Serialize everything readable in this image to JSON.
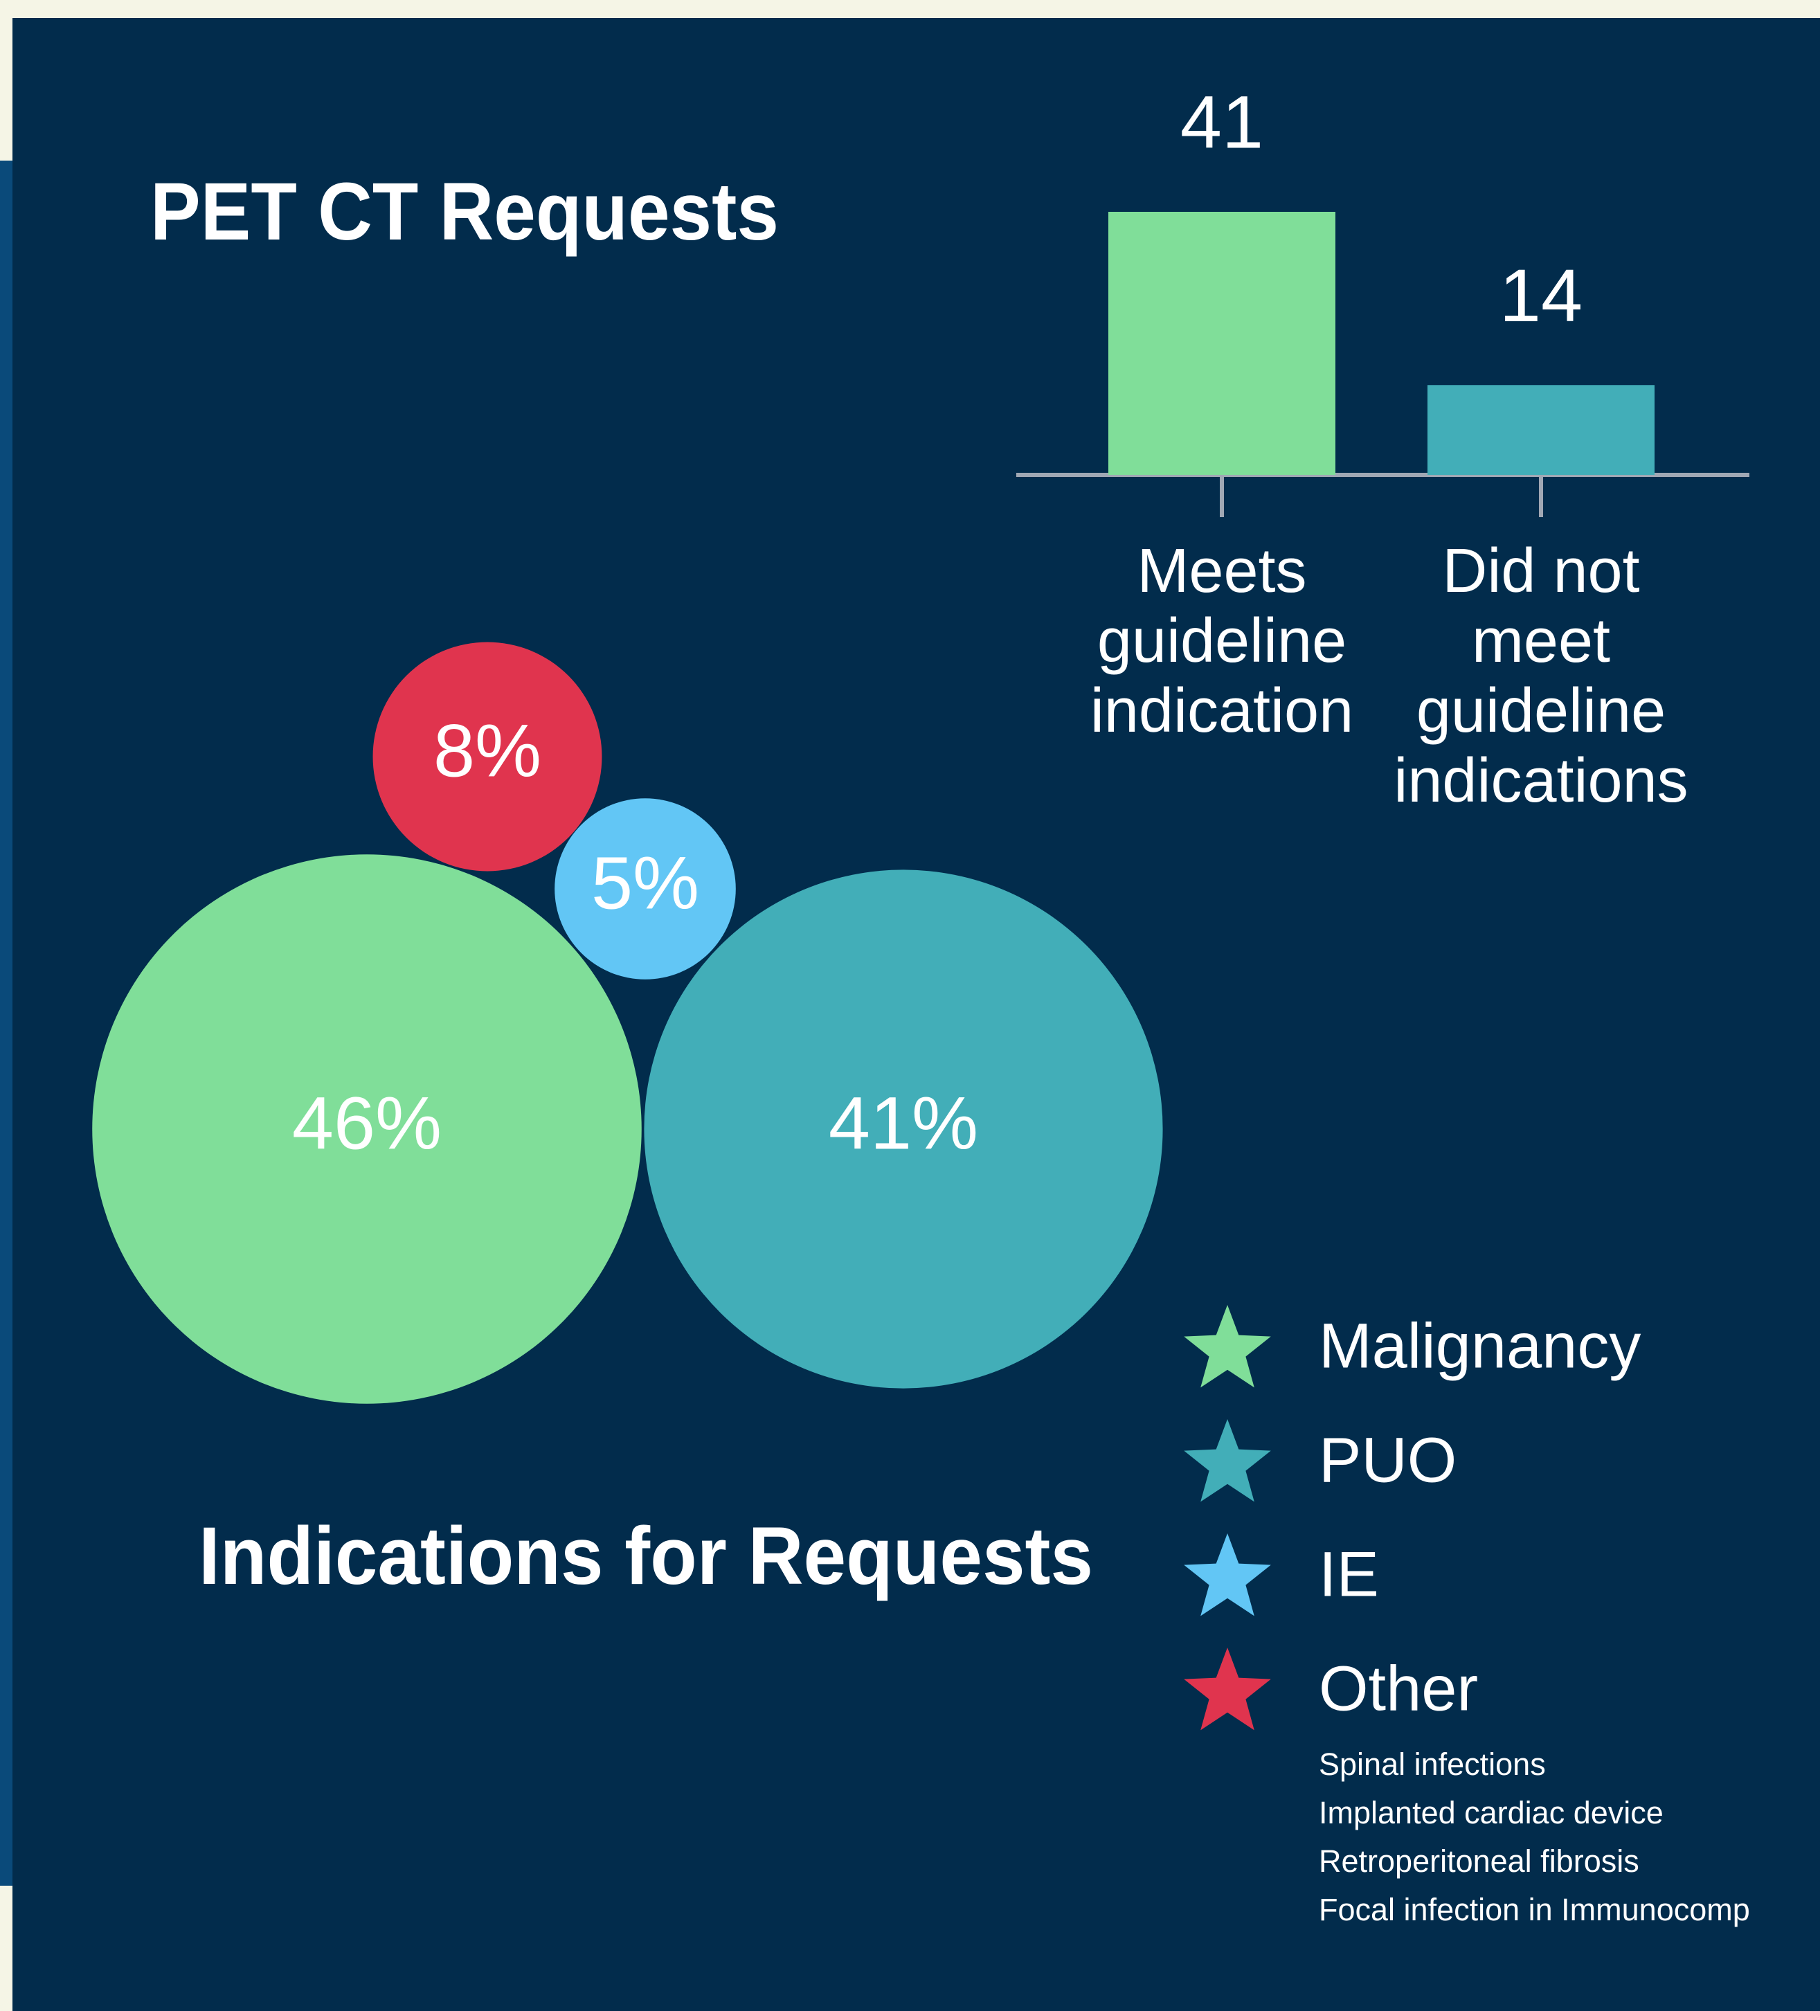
{
  "chart_data": [
    {
      "type": "bar",
      "title": "PET CT Requests",
      "categories": [
        "Meets\nguideline\nindication",
        "Did not\nmeet\nguideline\nindications"
      ],
      "values": [
        41,
        14
      ],
      "colors": [
        "#80de99",
        "#42aeb8"
      ]
    },
    {
      "type": "bubble",
      "title": "Indications for Requests",
      "categories": [
        "Malignancy",
        "PUO",
        "IE",
        "Other"
      ],
      "values": [
        46,
        41,
        5,
        8
      ],
      "value_labels": [
        "46%",
        "41%",
        "5%",
        "8%"
      ],
      "colors": [
        "#80de99",
        "#42aeb8",
        "#62c6f5",
        "#e0344e"
      ],
      "other_details": [
        "Spinal infections",
        "Implanted cardiac device",
        "Retroperitoneal fibrosis",
        "Focal infection in Immunocomp"
      ]
    }
  ]
}
